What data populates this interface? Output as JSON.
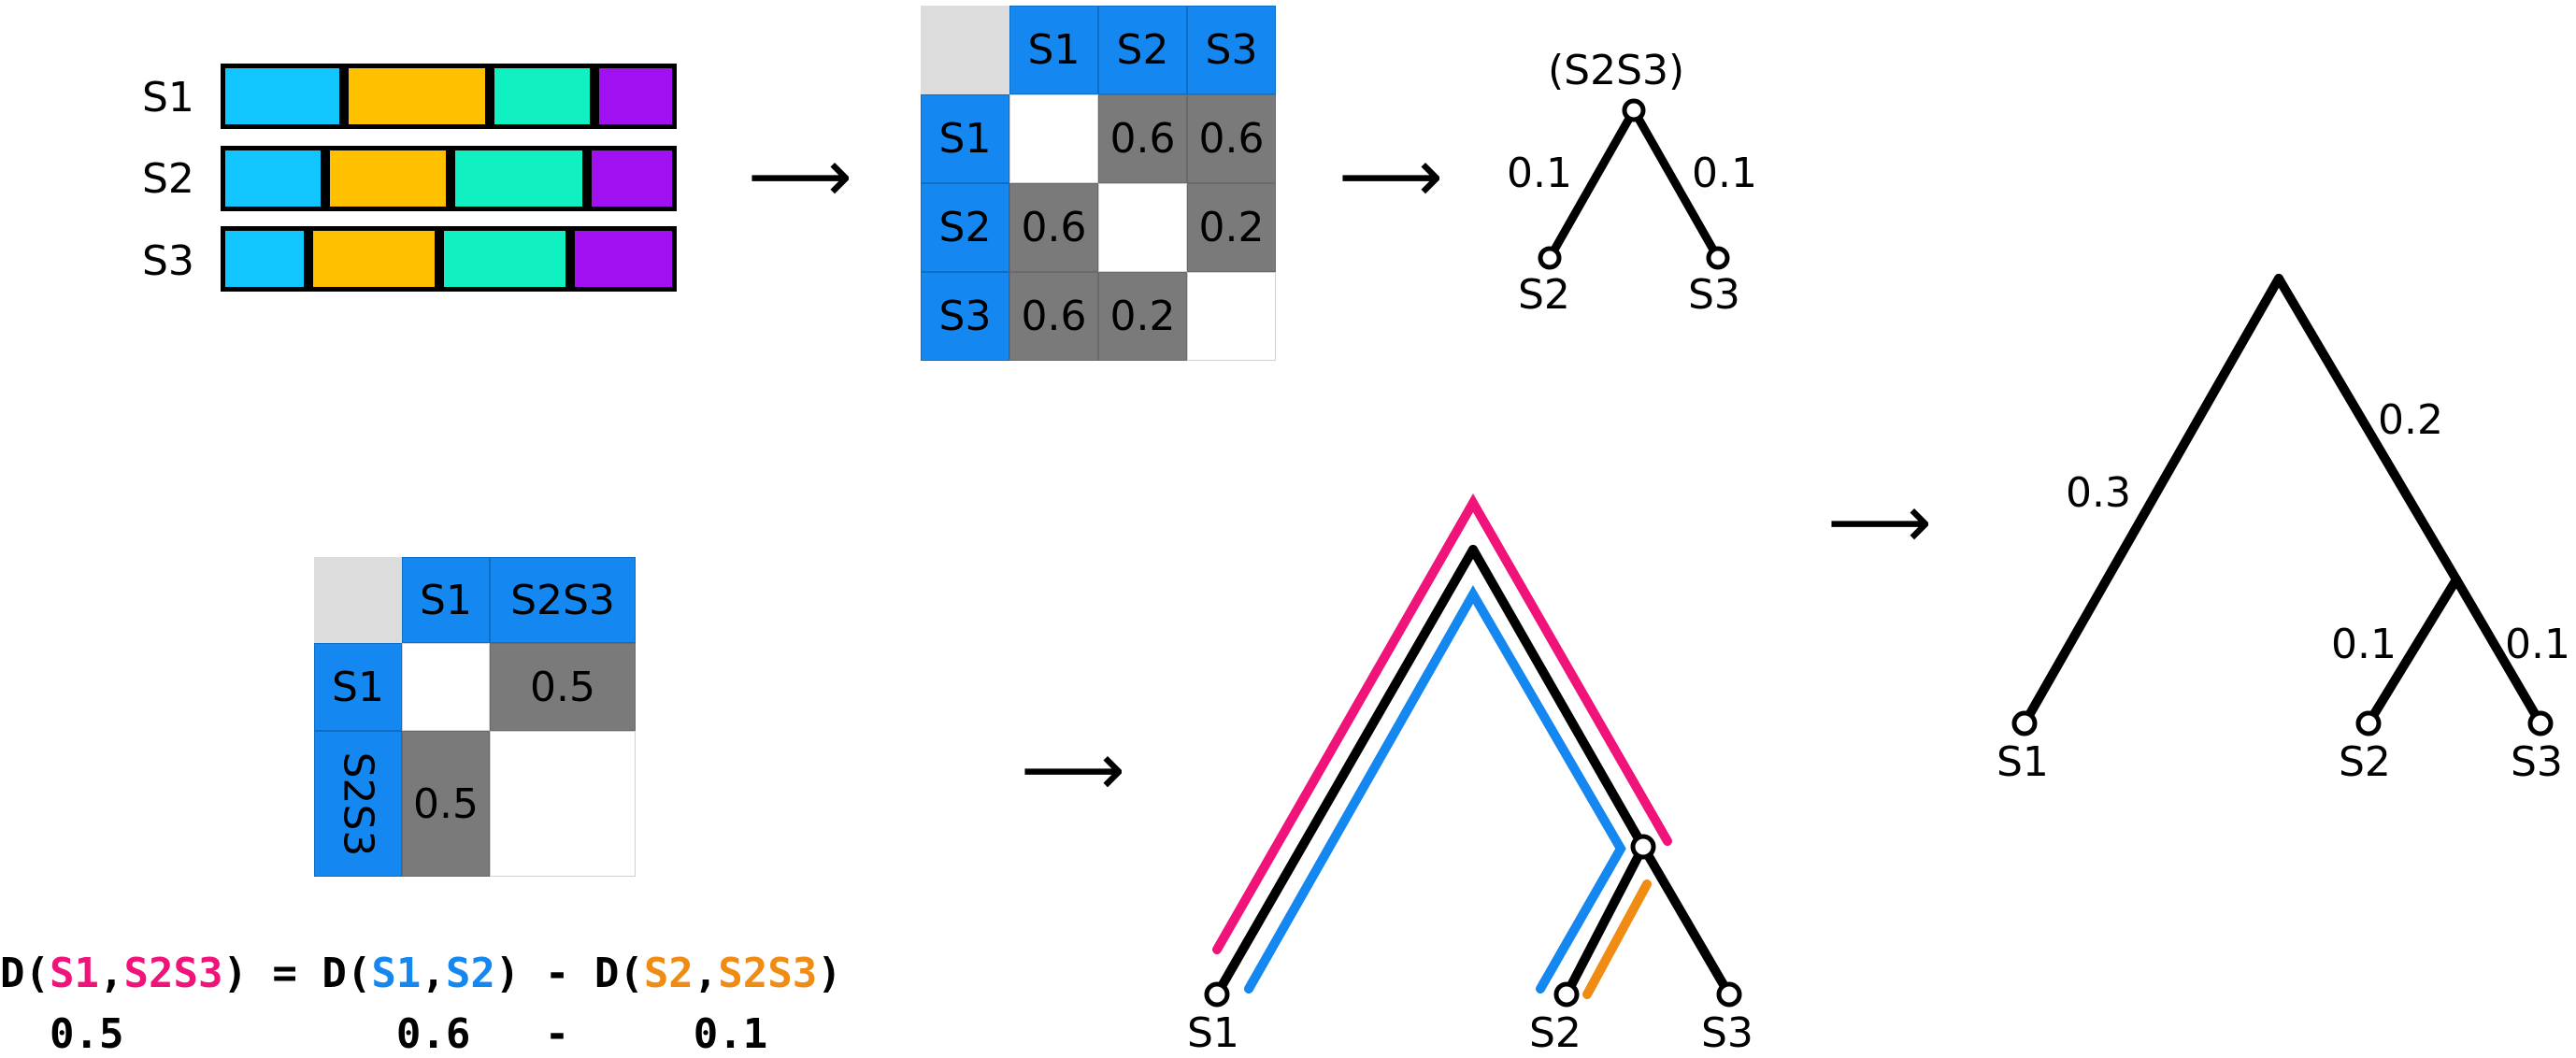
{
  "alignment": {
    "rows": [
      {
        "label": "S1",
        "blocks": [
          "cyan",
          "gold",
          "teal",
          "purple"
        ]
      },
      {
        "label": "S2",
        "blocks": [
          "cyan",
          "gold",
          "teal",
          "purple"
        ]
      },
      {
        "label": "S3",
        "blocks": [
          "cyan",
          "gold",
          "teal",
          "purple"
        ]
      }
    ],
    "colors": {
      "cyan": "#11c5ff",
      "gold": "#ffc000",
      "teal": "#10f0c0",
      "purple": "#a010f0"
    }
  },
  "matrix1": {
    "headers": [
      "S1",
      "S2",
      "S3"
    ],
    "rows": [
      {
        "label": "S1",
        "cells": [
          "",
          "0.6",
          "0.6"
        ]
      },
      {
        "label": "S2",
        "cells": [
          "0.6",
          "",
          "0.2"
        ]
      },
      {
        "label": "S3",
        "cells": [
          "0.6",
          "0.2",
          ""
        ]
      }
    ]
  },
  "tree1": {
    "root": "(S2S3)",
    "left_branch": "0.1",
    "right_branch": "0.1",
    "left_leaf": "S2",
    "right_leaf": "S3"
  },
  "matrix2": {
    "headers": [
      "S1",
      "S2S3"
    ],
    "rows": [
      {
        "label": "S1",
        "cells": [
          "",
          "0.5"
        ]
      },
      {
        "label": "S2S3",
        "cells": [
          "0.5",
          ""
        ]
      }
    ]
  },
  "formula": {
    "line1": [
      {
        "t": "D(",
        "c": "#000000"
      },
      {
        "t": "S1",
        "c": "#f0147a"
      },
      {
        "t": ",",
        "c": "#000000"
      },
      {
        "t": "S2S3",
        "c": "#f0147a"
      },
      {
        "t": ") = D(",
        "c": "#000000"
      },
      {
        "t": "S1",
        "c": "#1487f0"
      },
      {
        "t": ",",
        "c": "#000000"
      },
      {
        "t": "S2",
        "c": "#1487f0"
      },
      {
        "t": ") - D(",
        "c": "#000000"
      },
      {
        "t": "S2",
        "c": "#f08c14"
      },
      {
        "t": ",",
        "c": "#000000"
      },
      {
        "t": "S2S3",
        "c": "#f08c14"
      },
      {
        "t": ")",
        "c": "#000000"
      }
    ],
    "line2": "  0.5           0.6   -     0.1"
  },
  "tree2": {
    "leaves": [
      "S1",
      "S2",
      "S3"
    ]
  },
  "tree3": {
    "upper_left": "0.3",
    "upper_right": "0.2",
    "lower_left": "0.1",
    "lower_right": "0.1",
    "leaves": [
      "S1",
      "S2",
      "S3"
    ]
  },
  "arrows": {
    "glyph": "⟶"
  },
  "path_colors": {
    "pink": "#f0147a",
    "blue": "#1487f0",
    "orange": "#f08c14"
  }
}
